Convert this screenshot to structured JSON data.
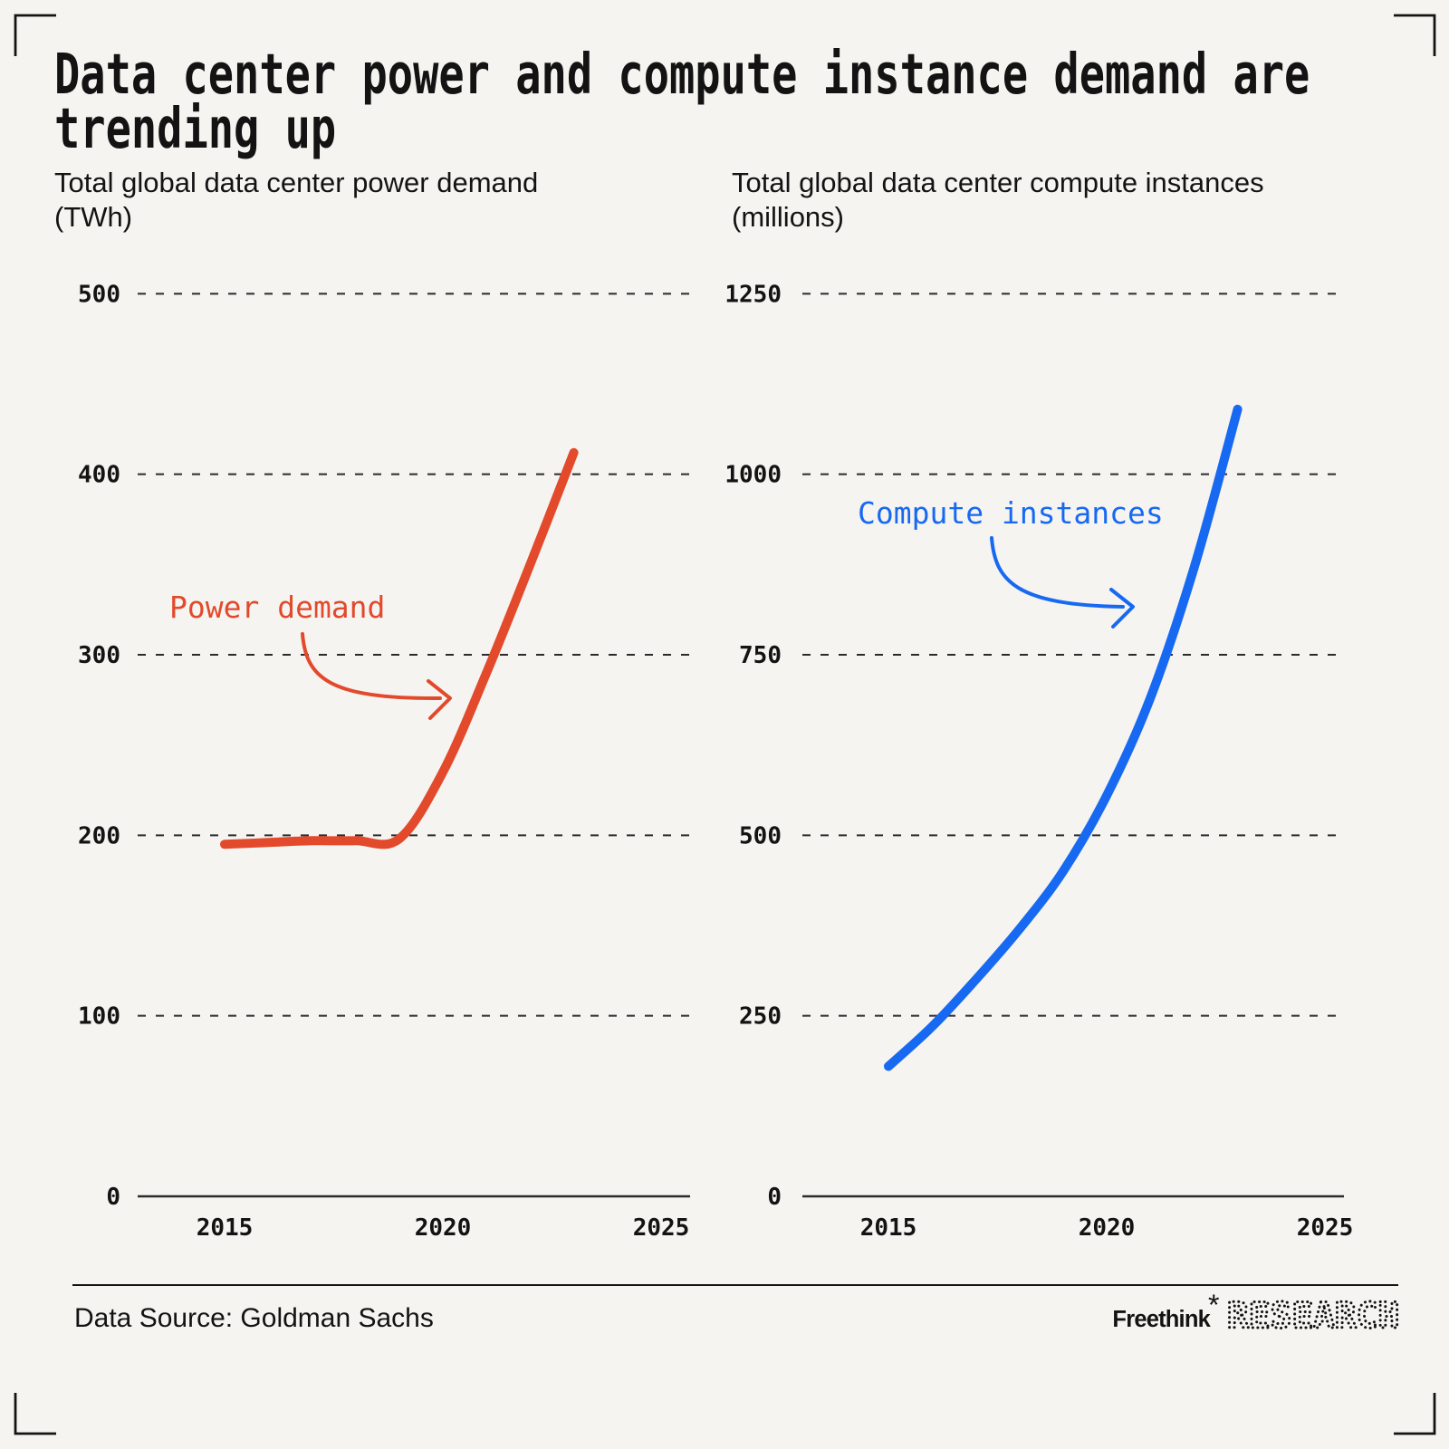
{
  "colors": {
    "background": "#F5F4F1",
    "ink": "#131313",
    "grid": "#2b2b2b",
    "power_red": "#E3492B",
    "compute_blue": "#1769F2"
  },
  "header": {
    "title": "Data center power and compute instance demand are trending up",
    "title_lines": [
      "Data center power and compute instance demand are",
      "trending up"
    ]
  },
  "footer": {
    "source": "Data Source: Goldman Sachs",
    "brand": "Freethink",
    "brand_star": "*",
    "brand_suffix": "RESEARCH"
  },
  "chart_data": [
    {
      "type": "line",
      "title": "Total global data center power demand (TWh)",
      "title_lines": [
        "Total global data center power demand",
        "(TWh)"
      ],
      "annotation": "Power demand",
      "xlim": [
        2013,
        2025.7
      ],
      "ylim": [
        0,
        500
      ],
      "y_step": 100,
      "grid": "horizontal-dashed",
      "y_ticks": [
        0,
        100,
        200,
        300,
        400,
        500
      ],
      "x_ticks": [
        2015,
        2020,
        2025
      ],
      "series": [
        {
          "name": "Power demand",
          "color": "#E3492B",
          "x": [
            2015,
            2016,
            2017,
            2018,
            2019,
            2020,
            2021,
            2022,
            2023
          ],
          "y": [
            195,
            196,
            197,
            197,
            198,
            235,
            290,
            350,
            412
          ]
        }
      ]
    },
    {
      "type": "line",
      "title": "Total global data center compute instances (millions)",
      "title_lines": [
        "Total global data center compute instances",
        "(millions)"
      ],
      "annotation": "Compute instances",
      "xlim": [
        2013,
        2025.7
      ],
      "ylim": [
        0,
        1250
      ],
      "y_step": 250,
      "grid": "horizontal-dashed",
      "y_ticks": [
        0,
        250,
        500,
        750,
        1000,
        1250
      ],
      "x_ticks": [
        2015,
        2020,
        2025
      ],
      "series": [
        {
          "name": "Compute instances",
          "color": "#1769F2",
          "x": [
            2015,
            2016,
            2017,
            2018,
            2019,
            2020,
            2021,
            2022,
            2023
          ],
          "y": [
            180,
            235,
            300,
            370,
            450,
            555,
            690,
            870,
            1090
          ]
        }
      ]
    }
  ]
}
